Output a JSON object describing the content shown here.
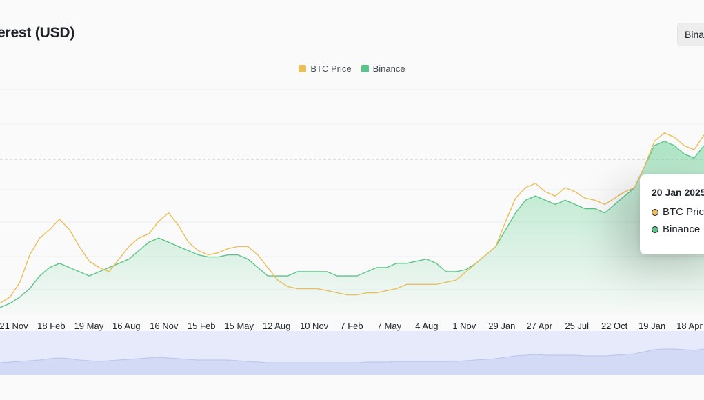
{
  "header": {
    "title": "erest (USD)",
    "exchange_select": "Binance"
  },
  "tooltip": {
    "date": "20 Jan 2025",
    "rows": [
      {
        "label": "BTC Price",
        "color": "#e8bf5a"
      },
      {
        "label": "Binance",
        "color": "#5cc488"
      }
    ]
  },
  "chart_data": {
    "type": "line",
    "title": "erest (USD)",
    "legend_position": "top-center",
    "grid": true,
    "x_tick_labels": [
      "21 Nov",
      "18 Feb",
      "19 May",
      "16 Aug",
      "16 Nov",
      "15 Feb",
      "15 May",
      "12 Aug",
      "10 Nov",
      "7 Feb",
      "7 May",
      "4 Aug",
      "1 Nov",
      "29 Jan",
      "27 Apr",
      "25 Jul",
      "22 Oct",
      "19 Jan",
      "18 Apr"
    ],
    "series": [
      {
        "name": "BTC Price",
        "color": "#e8bf5a",
        "style": "line",
        "values": [
          5,
          8,
          15,
          28,
          36,
          40,
          45,
          40,
          32,
          25,
          22,
          20,
          26,
          32,
          36,
          38,
          44,
          48,
          42,
          34,
          30,
          28,
          29,
          31,
          32,
          32,
          28,
          22,
          16,
          13,
          12,
          12,
          12,
          11,
          10,
          9,
          9,
          10,
          10,
          11,
          12,
          14,
          14,
          14,
          14,
          15,
          16,
          20,
          24,
          28,
          32,
          44,
          55,
          60,
          62,
          58,
          56,
          60,
          58,
          55,
          54,
          52,
          55,
          58,
          60,
          70,
          82,
          86,
          84,
          80,
          78,
          85
        ]
      },
      {
        "name": "Binance",
        "color": "#5cc488",
        "style": "area",
        "values": [
          3,
          5,
          8,
          12,
          18,
          22,
          24,
          22,
          20,
          18,
          20,
          22,
          24,
          26,
          30,
          34,
          36,
          34,
          32,
          30,
          28,
          27,
          27,
          28,
          28,
          26,
          22,
          18,
          18,
          18,
          20,
          20,
          20,
          20,
          18,
          18,
          18,
          20,
          22,
          22,
          24,
          24,
          25,
          26,
          24,
          20,
          20,
          21,
          24,
          28,
          32,
          40,
          48,
          54,
          56,
          54,
          52,
          54,
          52,
          50,
          50,
          48,
          52,
          56,
          60,
          70,
          80,
          82,
          80,
          76,
          74,
          80
        ]
      }
    ],
    "navigator": {
      "series": [
        18,
        19,
        20,
        21,
        22,
        24,
        25,
        24,
        22,
        21,
        20,
        21,
        22,
        23,
        24,
        25,
        26,
        25,
        24,
        23,
        22,
        22,
        22,
        22,
        21,
        20,
        19,
        18,
        18,
        18,
        18,
        18,
        18,
        18,
        18,
        18,
        18,
        19,
        19,
        19,
        20,
        20,
        20,
        20,
        20,
        20,
        20,
        21,
        22,
        23,
        24,
        26,
        28,
        29,
        30,
        29,
        29,
        29,
        29,
        28,
        28,
        28,
        29,
        30,
        31,
        34,
        37,
        38,
        38,
        37,
        36,
        38
      ]
    }
  }
}
